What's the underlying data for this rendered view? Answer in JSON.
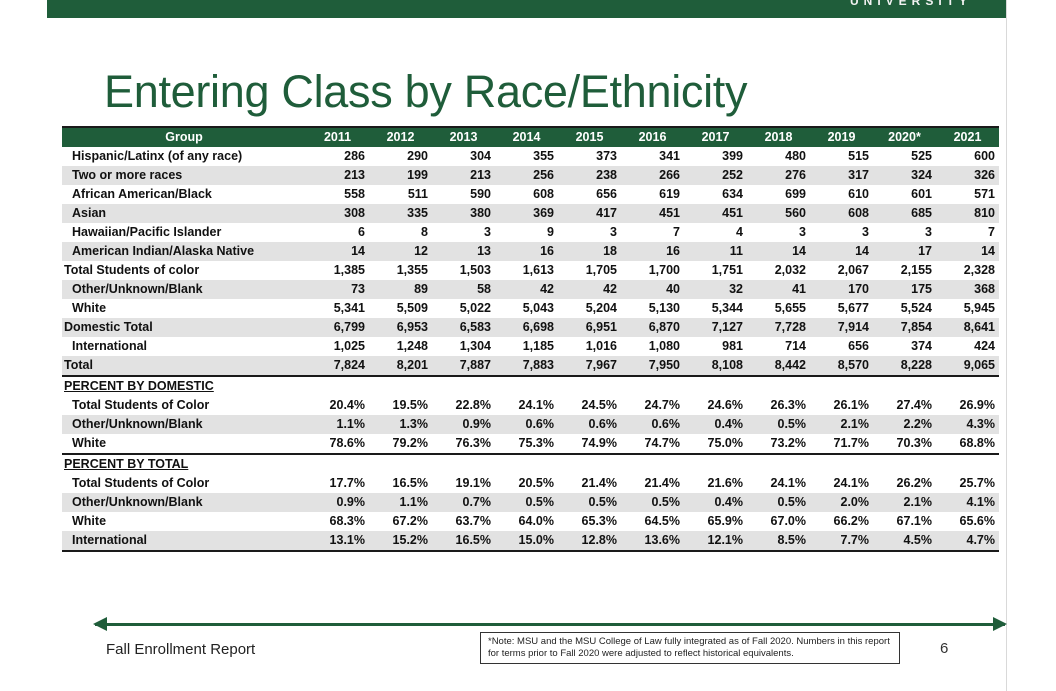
{
  "header": {
    "brand_word": "UNIVERSITY"
  },
  "title": "Entering Class by Race/Ethnicity",
  "table": {
    "group_header": "Group",
    "years": [
      "2011",
      "2012",
      "2013",
      "2014",
      "2015",
      "2016",
      "2017",
      "2018",
      "2019",
      "2020*",
      "2021"
    ],
    "rows": [
      {
        "label": "Hispanic/Latinx (of any race)",
        "values": [
          "286",
          "290",
          "304",
          "355",
          "373",
          "341",
          "399",
          "480",
          "515",
          "525",
          "600"
        ]
      },
      {
        "label": "Two or more races",
        "values": [
          "213",
          "199",
          "213",
          "256",
          "238",
          "266",
          "252",
          "276",
          "317",
          "324",
          "326"
        ]
      },
      {
        "label": "African American/Black",
        "values": [
          "558",
          "511",
          "590",
          "608",
          "656",
          "619",
          "634",
          "699",
          "610",
          "601",
          "571"
        ]
      },
      {
        "label": "Asian",
        "values": [
          "308",
          "335",
          "380",
          "369",
          "417",
          "451",
          "451",
          "560",
          "608",
          "685",
          "810"
        ]
      },
      {
        "label": "Hawaiian/Pacific Islander",
        "values": [
          "6",
          "8",
          "3",
          "9",
          "3",
          "7",
          "4",
          "3",
          "3",
          "3",
          "7"
        ]
      },
      {
        "label": "American Indian/Alaska Native",
        "values": [
          "14",
          "12",
          "13",
          "16",
          "18",
          "16",
          "11",
          "14",
          "14",
          "17",
          "14"
        ]
      },
      {
        "label": "Total Students of color",
        "values": [
          "1,385",
          "1,355",
          "1,503",
          "1,613",
          "1,705",
          "1,700",
          "1,751",
          "2,032",
          "2,067",
          "2,155",
          "2,328"
        ]
      },
      {
        "label": "Other/Unknown/Blank",
        "values": [
          "73",
          "89",
          "58",
          "42",
          "42",
          "40",
          "32",
          "41",
          "170",
          "175",
          "368"
        ]
      },
      {
        "label": "White",
        "values": [
          "5,341",
          "5,509",
          "5,022",
          "5,043",
          "5,204",
          "5,130",
          "5,344",
          "5,655",
          "5,677",
          "5,524",
          "5,945"
        ]
      },
      {
        "label": "Domestic Total",
        "values": [
          "6,799",
          "6,953",
          "6,583",
          "6,698",
          "6,951",
          "6,870",
          "7,127",
          "7,728",
          "7,914",
          "7,854",
          "8,641"
        ]
      },
      {
        "label": "International",
        "values": [
          "1,025",
          "1,248",
          "1,304",
          "1,185",
          "1,016",
          "1,080",
          "981",
          "714",
          "656",
          "374",
          "424"
        ]
      },
      {
        "label": "Total",
        "values": [
          "7,824",
          "8,201",
          "7,887",
          "7,883",
          "7,967",
          "7,950",
          "8,108",
          "8,442",
          "8,570",
          "8,228",
          "9,065"
        ]
      }
    ],
    "pct_domestic_header": "PERCENT BY DOMESTIC",
    "pct_domestic": [
      {
        "label": "Total Students of Color",
        "values": [
          "20.4%",
          "19.5%",
          "22.8%",
          "24.1%",
          "24.5%",
          "24.7%",
          "24.6%",
          "26.3%",
          "26.1%",
          "27.4%",
          "26.9%"
        ]
      },
      {
        "label": "Other/Unknown/Blank",
        "values": [
          "1.1%",
          "1.3%",
          "0.9%",
          "0.6%",
          "0.6%",
          "0.6%",
          "0.4%",
          "0.5%",
          "2.1%",
          "2.2%",
          "4.3%"
        ]
      },
      {
        "label": "White",
        "values": [
          "78.6%",
          "79.2%",
          "76.3%",
          "75.3%",
          "74.9%",
          "74.7%",
          "75.0%",
          "73.2%",
          "71.7%",
          "70.3%",
          "68.8%"
        ]
      }
    ],
    "pct_total_header": "PERCENT BY TOTAL",
    "pct_total": [
      {
        "label": "Total Students of Color",
        "values": [
          "17.7%",
          "16.5%",
          "19.1%",
          "20.5%",
          "21.4%",
          "21.4%",
          "21.6%",
          "24.1%",
          "24.1%",
          "26.2%",
          "25.7%"
        ]
      },
      {
        "label": "Other/Unknown/Blank",
        "values": [
          "0.9%",
          "1.1%",
          "0.7%",
          "0.5%",
          "0.5%",
          "0.5%",
          "0.4%",
          "0.5%",
          "2.0%",
          "2.1%",
          "4.1%"
        ]
      },
      {
        "label": "White",
        "values": [
          "68.3%",
          "67.2%",
          "63.7%",
          "64.0%",
          "65.3%",
          "64.5%",
          "65.9%",
          "67.0%",
          "66.2%",
          "67.1%",
          "65.6%"
        ]
      },
      {
        "label": "International",
        "values": [
          "13.1%",
          "15.2%",
          "16.5%",
          "15.0%",
          "12.8%",
          "13.6%",
          "12.1%",
          "8.5%",
          "7.7%",
          "4.5%",
          "4.7%"
        ]
      }
    ]
  },
  "footer": {
    "report_name": "Fall Enrollment Report",
    "note": "*Note: MSU and the MSU College of Law fully integrated as of Fall 2020.  Numbers in this report for terms prior to Fall 2020 were adjusted to reflect historical equivalents.",
    "page_number": "6"
  },
  "colors": {
    "brand_green": "#1f5d3a",
    "row_shade": "#e2e2e2"
  }
}
